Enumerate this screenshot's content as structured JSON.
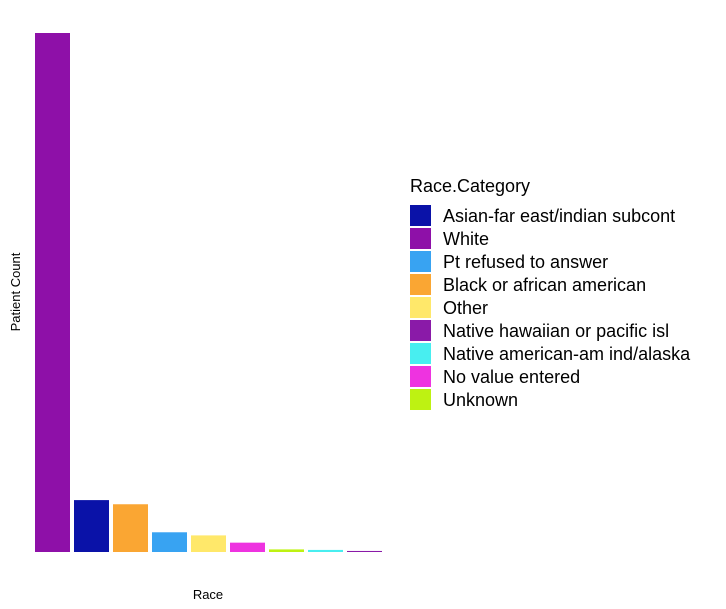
{
  "chart_data": {
    "type": "bar",
    "xlabel": "Race",
    "ylabel": "Patient Count",
    "categories": [
      "White",
      "Asian-far east/indian subcont",
      "Black or african american",
      "Pt refused to answer",
      "Other",
      "No value entered",
      "Unknown",
      "Native american-am ind/alaska",
      "Native hawaiian or pacific isl"
    ],
    "values": [
      1000,
      100,
      92,
      38,
      32,
      18,
      5,
      4,
      2
    ],
    "ylim": [
      0,
      1000
    ],
    "grid": false,
    "y_ticks_visible": false,
    "legend": {
      "title": "Race.Category",
      "placement": "right",
      "entries": [
        {
          "label": "Asian-far east/indian subcont",
          "color": "#0a12a8"
        },
        {
          "label": "White",
          "color": "#8e10a8"
        },
        {
          "label": "Pt refused to answer",
          "color": "#38a3f2"
        },
        {
          "label": "Black or african american",
          "color": "#faa633"
        },
        {
          "label": "Other",
          "color": "#ffe86a"
        },
        {
          "label": "Native hawaiian or pacific isl",
          "color": "#8a1aa8"
        },
        {
          "label": "Native american-am ind/alaska",
          "color": "#48eef0"
        },
        {
          "label": "No value entered",
          "color": "#ee33e0"
        },
        {
          "label": "Unknown",
          "color": "#bef212"
        }
      ]
    }
  }
}
